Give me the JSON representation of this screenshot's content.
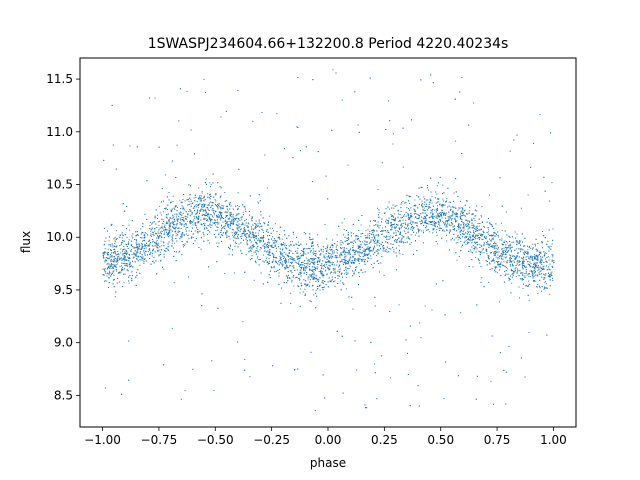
{
  "chart_data": {
    "type": "scatter",
    "title": "1SWASPJ234604.66+132200.8 Period 4220.40234s",
    "xlabel": "phase",
    "ylabel": "flux",
    "xlim": [
      -1.1,
      1.1
    ],
    "ylim": [
      8.2,
      11.7
    ],
    "x_ticks": [
      -1.0,
      -0.75,
      -0.5,
      -0.25,
      0.0,
      0.25,
      0.5,
      0.75,
      1.0
    ],
    "x_tick_labels": [
      "−1.00",
      "−0.75",
      "−0.50",
      "−0.25",
      "0.00",
      "0.25",
      "0.50",
      "0.75",
      "1.00"
    ],
    "y_ticks": [
      8.5,
      9.0,
      9.5,
      10.0,
      10.5,
      11.0,
      11.5
    ],
    "y_tick_labels": [
      "8.5",
      "9.0",
      "9.5",
      "10.0",
      "10.5",
      "11.0",
      "11.5"
    ],
    "marker_color": "#1f77b4",
    "grid": false,
    "series": [
      {
        "phase_range": [
          -1.0,
          1.0
        ],
        "mean_flux": 9.98,
        "amplitude": 0.25,
        "maxima_phase": [
          -0.55,
          0.45
        ],
        "minima_phase": [
          -0.05,
          0.95
        ],
        "scatter_sigma": 0.12,
        "outlier_range": [
          8.35,
          11.6
        ],
        "x": [
          -1.0,
          -0.9,
          -0.8,
          -0.7,
          -0.6,
          -0.55,
          -0.5,
          -0.4,
          -0.3,
          -0.2,
          -0.1,
          -0.05,
          0.0,
          0.1,
          0.2,
          0.3,
          0.4,
          0.45,
          0.5,
          0.6,
          0.7,
          0.8,
          0.9,
          0.95,
          1.0
        ],
        "y": [
          9.75,
          9.82,
          9.95,
          10.1,
          10.2,
          10.23,
          10.2,
          10.1,
          9.95,
          9.8,
          9.74,
          9.73,
          9.75,
          9.82,
          9.95,
          10.1,
          10.2,
          10.23,
          10.2,
          10.1,
          9.95,
          9.8,
          9.74,
          9.73,
          9.75
        ]
      }
    ]
  }
}
